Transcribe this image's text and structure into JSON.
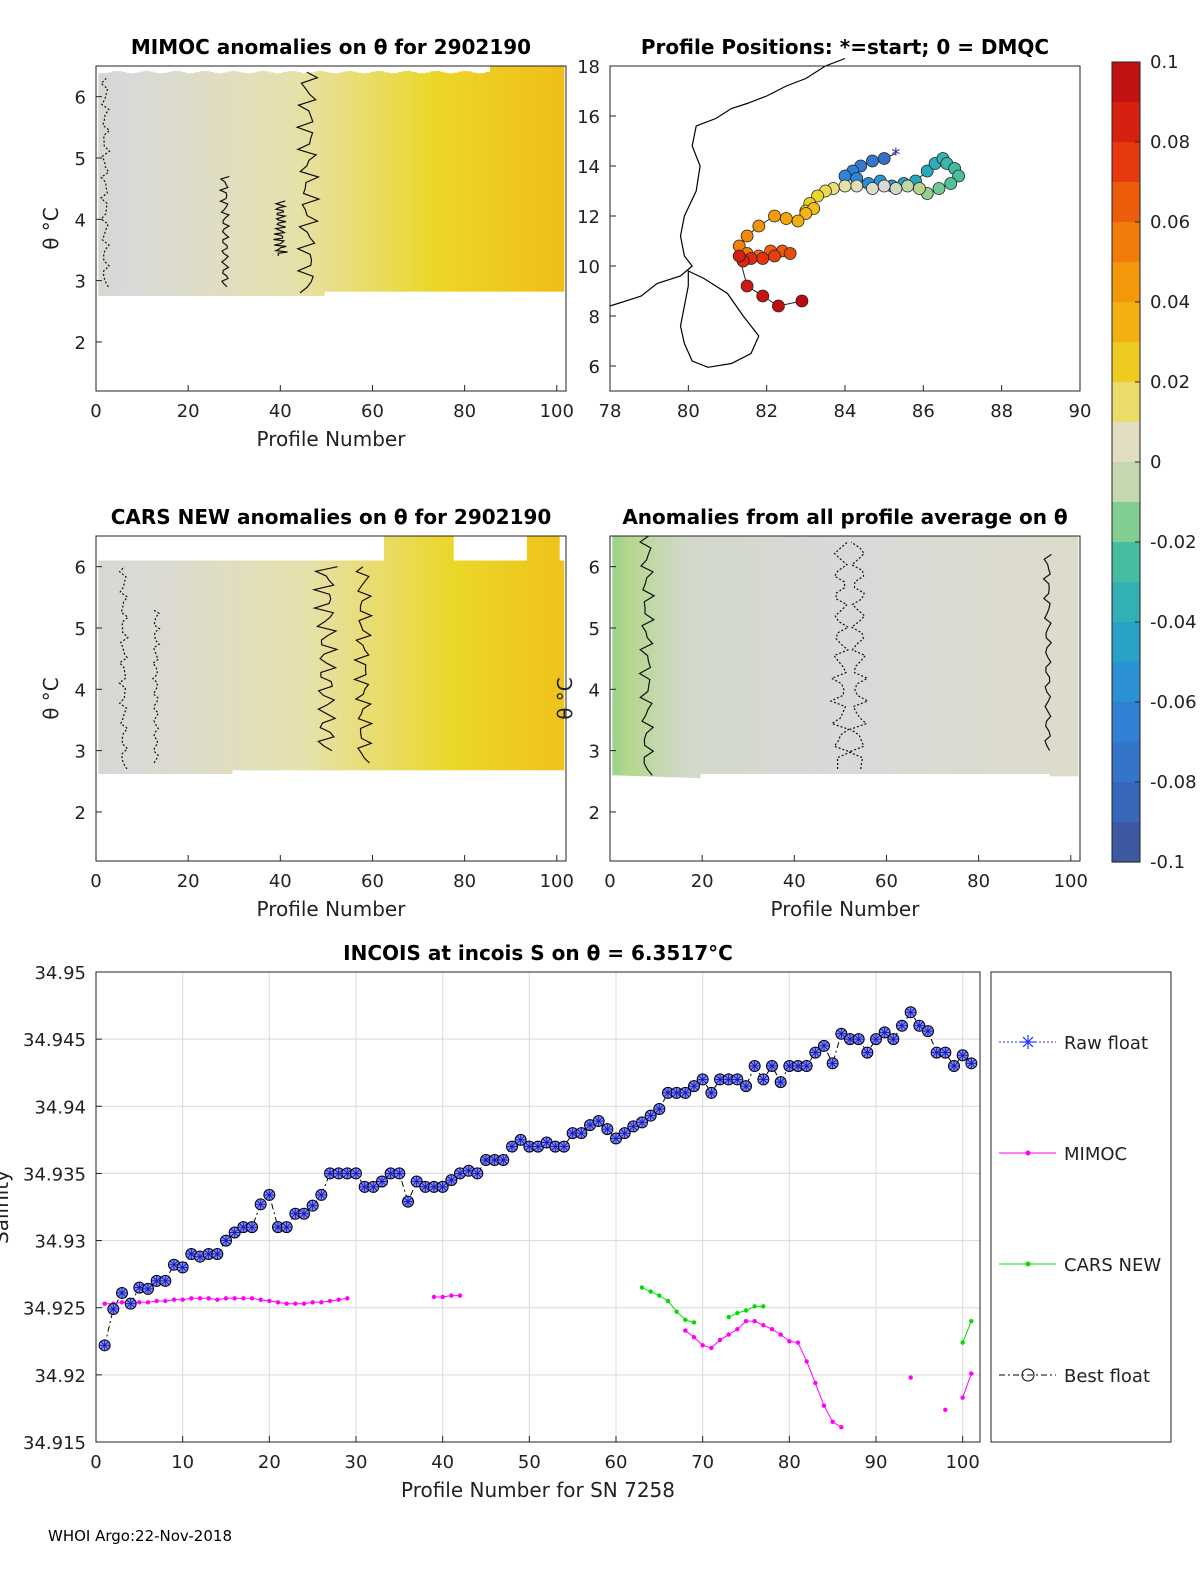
{
  "chart_data": [
    {
      "type": "heatmap",
      "title": "MIMOC anomalies on θ  for 2902190",
      "xlabel": "Profile Number",
      "ylabel": "θ °C",
      "xlim": [
        0,
        102
      ],
      "ylim": [
        1.2,
        6.5
      ],
      "xticks": [
        0,
        20,
        40,
        60,
        80,
        100
      ],
      "yticks": [
        2,
        3,
        4,
        5,
        6
      ],
      "anomaly_range": [
        -0.001,
        0.03
      ],
      "description": "anomaly grows from ~0 near profile 1 to ~0.03 at profile 101"
    },
    {
      "type": "scatter",
      "title": "Profile Positions: *=start; 0 = DMQC",
      "xlabel": "",
      "ylabel": "",
      "xlim": [
        78,
        90
      ],
      "ylim": [
        5,
        18
      ],
      "xticks": [
        78,
        80,
        82,
        84,
        86,
        88,
        90
      ],
      "yticks": [
        6,
        8,
        10,
        12,
        14,
        16,
        18
      ],
      "start_marker": "*",
      "track_lon": [
        85.3,
        85.0,
        84.7,
        84.4,
        84.2,
        84.0,
        84.3,
        84.6,
        84.9,
        85.2,
        85.5,
        85.8,
        86.1,
        86.3,
        86.5,
        86.6,
        86.8,
        86.9,
        86.7,
        86.4,
        86.1,
        85.9,
        85.6,
        85.3,
        85.0,
        84.7,
        84.3,
        84.0,
        83.7,
        83.5,
        83.3,
        83.1,
        83.0,
        83.2,
        83.0,
        82.8,
        82.5,
        82.2,
        81.8,
        81.5,
        81.3,
        81.5,
        81.8,
        82.1,
        82.4,
        82.6,
        82.2,
        81.9,
        81.6,
        81.4,
        81.3,
        81.5,
        81.9,
        82.3,
        82.9
      ],
      "track_lat": [
        14.5,
        14.3,
        14.2,
        14.0,
        13.8,
        13.6,
        13.5,
        13.3,
        13.4,
        13.2,
        13.3,
        13.4,
        13.8,
        14.1,
        14.3,
        14.1,
        13.9,
        13.6,
        13.3,
        13.1,
        12.9,
        13.1,
        13.2,
        13.1,
        13.2,
        13.1,
        13.2,
        13.2,
        13.1,
        13.0,
        12.8,
        12.5,
        12.2,
        12.3,
        12.1,
        11.8,
        11.9,
        12.0,
        11.6,
        11.2,
        10.8,
        10.5,
        10.4,
        10.6,
        10.6,
        10.5,
        10.4,
        10.3,
        10.3,
        10.2,
        10.4,
        9.2,
        8.8,
        8.4,
        8.6
      ]
    },
    {
      "type": "heatmap",
      "title": "CARS NEW anomalies on θ for 2902190",
      "xlabel": "Profile Number",
      "ylabel": "θ °C",
      "xlim": [
        0,
        102
      ],
      "ylim": [
        1.2,
        6.5
      ],
      "xticks": [
        0,
        20,
        40,
        60,
        80,
        100
      ],
      "yticks": [
        2,
        3,
        4,
        5,
        6
      ],
      "anomaly_range": [
        -0.001,
        0.028
      ]
    },
    {
      "type": "heatmap",
      "title": "Anomalies from all profile average on θ",
      "xlabel": "Profile Number",
      "ylabel": "θ °C",
      "xlim": [
        0,
        102
      ],
      "ylim": [
        1.2,
        6.5
      ],
      "xticks": [
        0,
        20,
        40,
        60,
        80,
        100
      ],
      "yticks": [
        2,
        3,
        4,
        5,
        6
      ],
      "anomaly_range": [
        -0.012,
        0.006
      ]
    },
    {
      "type": "colorbar",
      "range": [
        -0.1,
        0.1
      ],
      "tick_labels": [
        "0.1",
        "0.08",
        "0.06",
        "0.04",
        "0.02",
        "0",
        "-0.02",
        "-0.04",
        "-0.06",
        "-0.08",
        "-0.1"
      ],
      "tick_values": [
        0.1,
        0.08,
        0.06,
        0.04,
        0.02,
        0,
        -0.02,
        -0.04,
        -0.06,
        -0.08,
        -0.1
      ]
    },
    {
      "type": "line",
      "title": "INCOIS at incois S on θ = 6.3517°C",
      "xlabel": "Profile Number for SN 7258",
      "ylabel": "Salinity",
      "xlim": [
        0,
        102
      ],
      "ylim": [
        34.915,
        34.95
      ],
      "xticks": [
        0,
        10,
        20,
        30,
        40,
        50,
        60,
        70,
        80,
        90,
        100
      ],
      "yticks": [
        34.915,
        34.92,
        34.925,
        34.93,
        34.935,
        34.94,
        34.945,
        34.95
      ],
      "ytick_labels": [
        "34.915",
        "34.92",
        "34.925",
        "34.93",
        "34.935",
        "34.94",
        "34.945",
        "34.95"
      ],
      "grid": true,
      "legend": [
        "Raw float",
        "MIMOC",
        "CARS NEW",
        "Best float"
      ],
      "series": [
        {
          "name": "Best float",
          "x": [
            1,
            2,
            3,
            4,
            5,
            6,
            7,
            8,
            9,
            10,
            11,
            12,
            13,
            14,
            15,
            16,
            17,
            18,
            19,
            20,
            21,
            22,
            23,
            24,
            25,
            26,
            27,
            28,
            29,
            30,
            31,
            32,
            33,
            34,
            35,
            36,
            37,
            38,
            39,
            40,
            41,
            42,
            43,
            44,
            45,
            46,
            47,
            48,
            49,
            50,
            51,
            52,
            53,
            54,
            55,
            56,
            57,
            58,
            59,
            60,
            61,
            62,
            63,
            64,
            65,
            66,
            67,
            68,
            69,
            70,
            71,
            72,
            73,
            74,
            75,
            76,
            77,
            78,
            79,
            80,
            81,
            82,
            83,
            84,
            85,
            86,
            87,
            88,
            89,
            90,
            91,
            92,
            93,
            94,
            95,
            96,
            97,
            98,
            99,
            100,
            101
          ],
          "values": [
            34.9222,
            34.9249,
            34.9261,
            34.9253,
            34.9265,
            34.9264,
            34.927,
            34.927,
            34.9282,
            34.928,
            34.929,
            34.9288,
            34.929,
            34.929,
            34.93,
            34.9306,
            34.931,
            34.931,
            34.9327,
            34.9334,
            34.931,
            34.931,
            34.932,
            34.932,
            34.9326,
            34.9334,
            34.935,
            34.935,
            34.935,
            34.935,
            34.934,
            34.934,
            34.9344,
            34.935,
            34.935,
            34.9329,
            34.9344,
            34.934,
            34.934,
            34.934,
            34.9345,
            34.935,
            34.9352,
            34.935,
            34.936,
            34.936,
            34.936,
            34.937,
            34.9375,
            34.937,
            34.937,
            34.9373,
            34.937,
            34.937,
            34.938,
            34.938,
            34.9386,
            34.9389,
            34.9383,
            34.9376,
            34.938,
            34.9385,
            34.9388,
            34.9393,
            34.9398,
            34.941,
            34.941,
            34.941,
            34.9415,
            34.942,
            34.941,
            34.942,
            34.942,
            34.942,
            34.9415,
            34.943,
            34.942,
            34.943,
            34.9418,
            34.943,
            34.943,
            34.943,
            34.944,
            34.9445,
            34.9432,
            34.9454,
            34.945,
            34.945,
            34.944,
            34.945,
            34.9455,
            34.945,
            34.946,
            34.947,
            34.946,
            34.9456,
            34.944,
            34.944,
            34.943,
            34.9438,
            34.9432
          ]
        },
        {
          "name": "MIMOC",
          "x": [
            1,
            2,
            3,
            4,
            5,
            6,
            7,
            8,
            9,
            10,
            11,
            12,
            13,
            14,
            15,
            16,
            17,
            18,
            19,
            20,
            21,
            22,
            23,
            24,
            25,
            26,
            27,
            28,
            29,
            39,
            40,
            41,
            42,
            68,
            69,
            70,
            71,
            72,
            73,
            74,
            75,
            76,
            77,
            78,
            79,
            80,
            81,
            82,
            83,
            84,
            85,
            86,
            94,
            98,
            100,
            101
          ],
          "values": [
            34.9253,
            34.9253,
            34.9254,
            34.9254,
            34.9254,
            34.9254,
            34.9255,
            34.9255,
            34.9256,
            34.9256,
            34.9257,
            34.9257,
            34.9257,
            34.9256,
            34.9257,
            34.9257,
            34.9257,
            34.9257,
            34.9256,
            34.9255,
            34.9254,
            34.9253,
            34.9253,
            34.9253,
            34.9254,
            34.9254,
            34.9255,
            34.9256,
            34.9257,
            34.9258,
            34.9258,
            34.9259,
            34.9259,
            34.9233,
            34.9228,
            34.9222,
            34.922,
            34.9226,
            34.923,
            34.9234,
            34.924,
            34.924,
            34.9237,
            34.9234,
            34.923,
            34.9225,
            34.9224,
            34.921,
            34.9194,
            34.9177,
            34.9165,
            34.9161,
            34.9198,
            34.9174,
            34.9183,
            34.9201
          ]
        },
        {
          "name": "CARS NEW",
          "x": [
            63,
            64,
            65,
            66,
            67,
            68,
            69,
            73,
            74,
            75,
            76,
            77,
            100,
            101
          ],
          "values": [
            34.9265,
            34.9262,
            34.9259,
            34.9255,
            34.9247,
            34.9241,
            34.9239,
            34.9243,
            34.9246,
            34.9248,
            34.9251,
            34.9251,
            34.9224,
            34.924
          ]
        }
      ]
    }
  ],
  "footer": "WHOI Argo:22-Nov-2018"
}
